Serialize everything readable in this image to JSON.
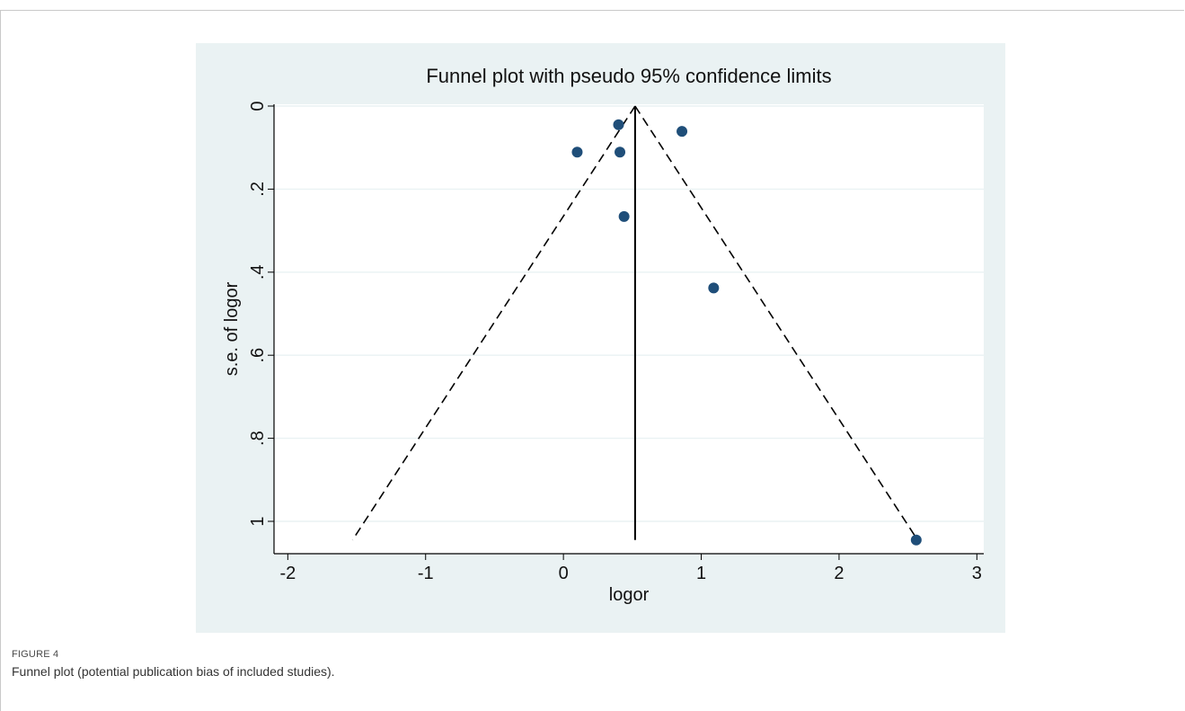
{
  "chart_data": {
    "type": "scatter",
    "title": "Funnel plot with pseudo 95% confidence limits",
    "xlabel": "logor",
    "ylabel": "s.e. of logor",
    "xlim": [
      -2.1,
      3.05
    ],
    "ylim": [
      1.05,
      0
    ],
    "y_reversed": true,
    "y_tick_label_orientation": "rotated",
    "x_ticks": [
      {
        "value": -2,
        "label": "-2"
      },
      {
        "value": -1,
        "label": "-1"
      },
      {
        "value": 0,
        "label": "0"
      },
      {
        "value": 1,
        "label": "1"
      },
      {
        "value": 2,
        "label": "2"
      },
      {
        "value": 3,
        "label": "3"
      }
    ],
    "y_ticks": [
      {
        "value": 0,
        "label": "0"
      },
      {
        "value": 0.2,
        "label": ".2"
      },
      {
        "value": 0.4,
        "label": ".4"
      },
      {
        "value": 0.6,
        "label": ".6"
      },
      {
        "value": 0.8,
        "label": ".8"
      },
      {
        "value": 1,
        "label": "1"
      }
    ],
    "grid": "horizontal",
    "points": [
      {
        "x": 0.4,
        "y": 0.045
      },
      {
        "x": 0.86,
        "y": 0.061
      },
      {
        "x": 0.1,
        "y": 0.111
      },
      {
        "x": 0.41,
        "y": 0.111
      },
      {
        "x": 0.44,
        "y": 0.266
      },
      {
        "x": 1.09,
        "y": 0.438
      },
      {
        "x": 2.56,
        "y": 1.045
      }
    ],
    "pooled_estimate": 0.52,
    "confidence_limits": {
      "left": [
        {
          "x": 0.52,
          "y": 0
        },
        {
          "x": -1.53,
          "y": 1.045
        }
      ],
      "right": [
        {
          "x": 0.52,
          "y": 0
        },
        {
          "x": 2.57,
          "y": 1.045
        }
      ]
    },
    "colors": {
      "points": "#1f4e79",
      "lines": "#000000",
      "panel_bg": "#eaf2f3",
      "plot_bg": "#ffffff",
      "grid": "#eaf2f3"
    }
  },
  "caption": {
    "label": "FIGURE 4",
    "text": "Funnel plot (potential publication bias of included studies)."
  }
}
